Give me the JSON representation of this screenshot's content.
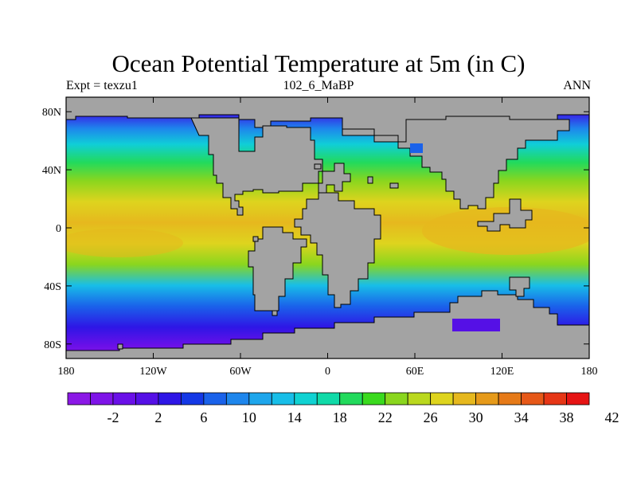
{
  "chart_data": {
    "type": "heatmap",
    "title": "Ocean Potential Temperature at 5m (in C)",
    "left_string": "Expt = texzu1",
    "center_string": "102_6_MaBP",
    "right_string": "ANN",
    "x_ticks": [
      "180",
      "120W",
      "60W",
      "0",
      "60E",
      "120E",
      "180"
    ],
    "y_ticks": [
      "80N",
      "40N",
      "0",
      "40S",
      "80S"
    ],
    "xlim": [
      -180,
      180
    ],
    "ylim": [
      -90,
      90
    ],
    "colorbar": {
      "labels": [
        "-2",
        "2",
        "6",
        "10",
        "14",
        "18",
        "22",
        "26",
        "30",
        "34",
        "38",
        "42"
      ],
      "colors": [
        "#8B18E6",
        "#7E14E8",
        "#6A10E8",
        "#5510E6",
        "#2E16E6",
        "#1438E6",
        "#1A62EA",
        "#1E86EC",
        "#1EA6EC",
        "#18BEE8",
        "#10D2D2",
        "#10DAA8",
        "#22DA5C",
        "#3ADA1E",
        "#8AD61E",
        "#BAD81E",
        "#DED41E",
        "#E6B81E",
        "#E69A1A",
        "#E67A18",
        "#E65818",
        "#E63616",
        "#E61414"
      ]
    }
  }
}
